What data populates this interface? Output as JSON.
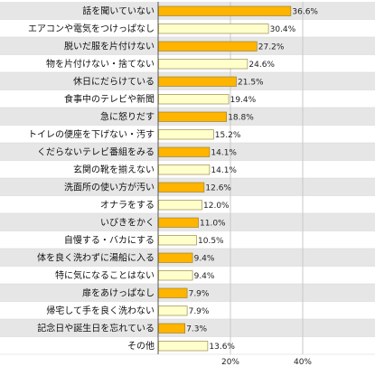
{
  "chart_data": {
    "type": "bar",
    "orientation": "horizontal",
    "categories": [
      "話を聞いていない",
      "エアコンや電気をつけっぱなし",
      "脱いだ服を片付けない",
      "物を片付けない・捨てない",
      "休日にだらけている",
      "食事中のテレビや新聞",
      "急に怒りだす",
      "トイレの便座を下げない・汚す",
      "くだらないテレビ番組をみる",
      "玄関の靴を揃えない",
      "洗面所の使い方が汚い",
      "オナラをする",
      "いびきをかく",
      "自慢する・バカにする",
      "体を良く洗わずに湯船に入る",
      "特に気になることはない",
      "扉をあけっぱなし",
      "帰宅して手を良く洗わない",
      "記念日や誕生日を忘れている",
      "その他"
    ],
    "values": [
      36.6,
      30.4,
      27.2,
      24.6,
      21.5,
      19.4,
      18.8,
      15.2,
      14.1,
      14.1,
      12.6,
      12.0,
      11.0,
      10.5,
      9.4,
      9.4,
      7.9,
      7.9,
      7.3,
      13.6
    ],
    "value_labels": [
      "36.6%",
      "30.4%",
      "27.2%",
      "24.6%",
      "21.5%",
      "19.4%",
      "18.8%",
      "15.2%",
      "14.1%",
      "14.1%",
      "12.6%",
      "12.0%",
      "11.0%",
      "10.5%",
      "9.4%",
      "9.4%",
      "7.9%",
      "7.9%",
      "7.3%",
      "13.6%"
    ],
    "highlight": [
      true,
      false,
      true,
      false,
      true,
      false,
      true,
      false,
      true,
      false,
      true,
      false,
      true,
      false,
      true,
      false,
      true,
      false,
      true,
      false
    ],
    "x_ticks": [
      20,
      40
    ],
    "x_tick_labels": [
      "20%",
      "40%"
    ],
    "xlim": [
      0,
      40
    ],
    "grid": "vertical",
    "colors": {
      "bar_highlight": "#ffb400",
      "bar_normal": "#ffffcc",
      "bar_border": "#8a7a30",
      "row_shade": "#e6e6e6",
      "row_plain": "#ffffff",
      "grid": "#c8c8c8"
    }
  }
}
